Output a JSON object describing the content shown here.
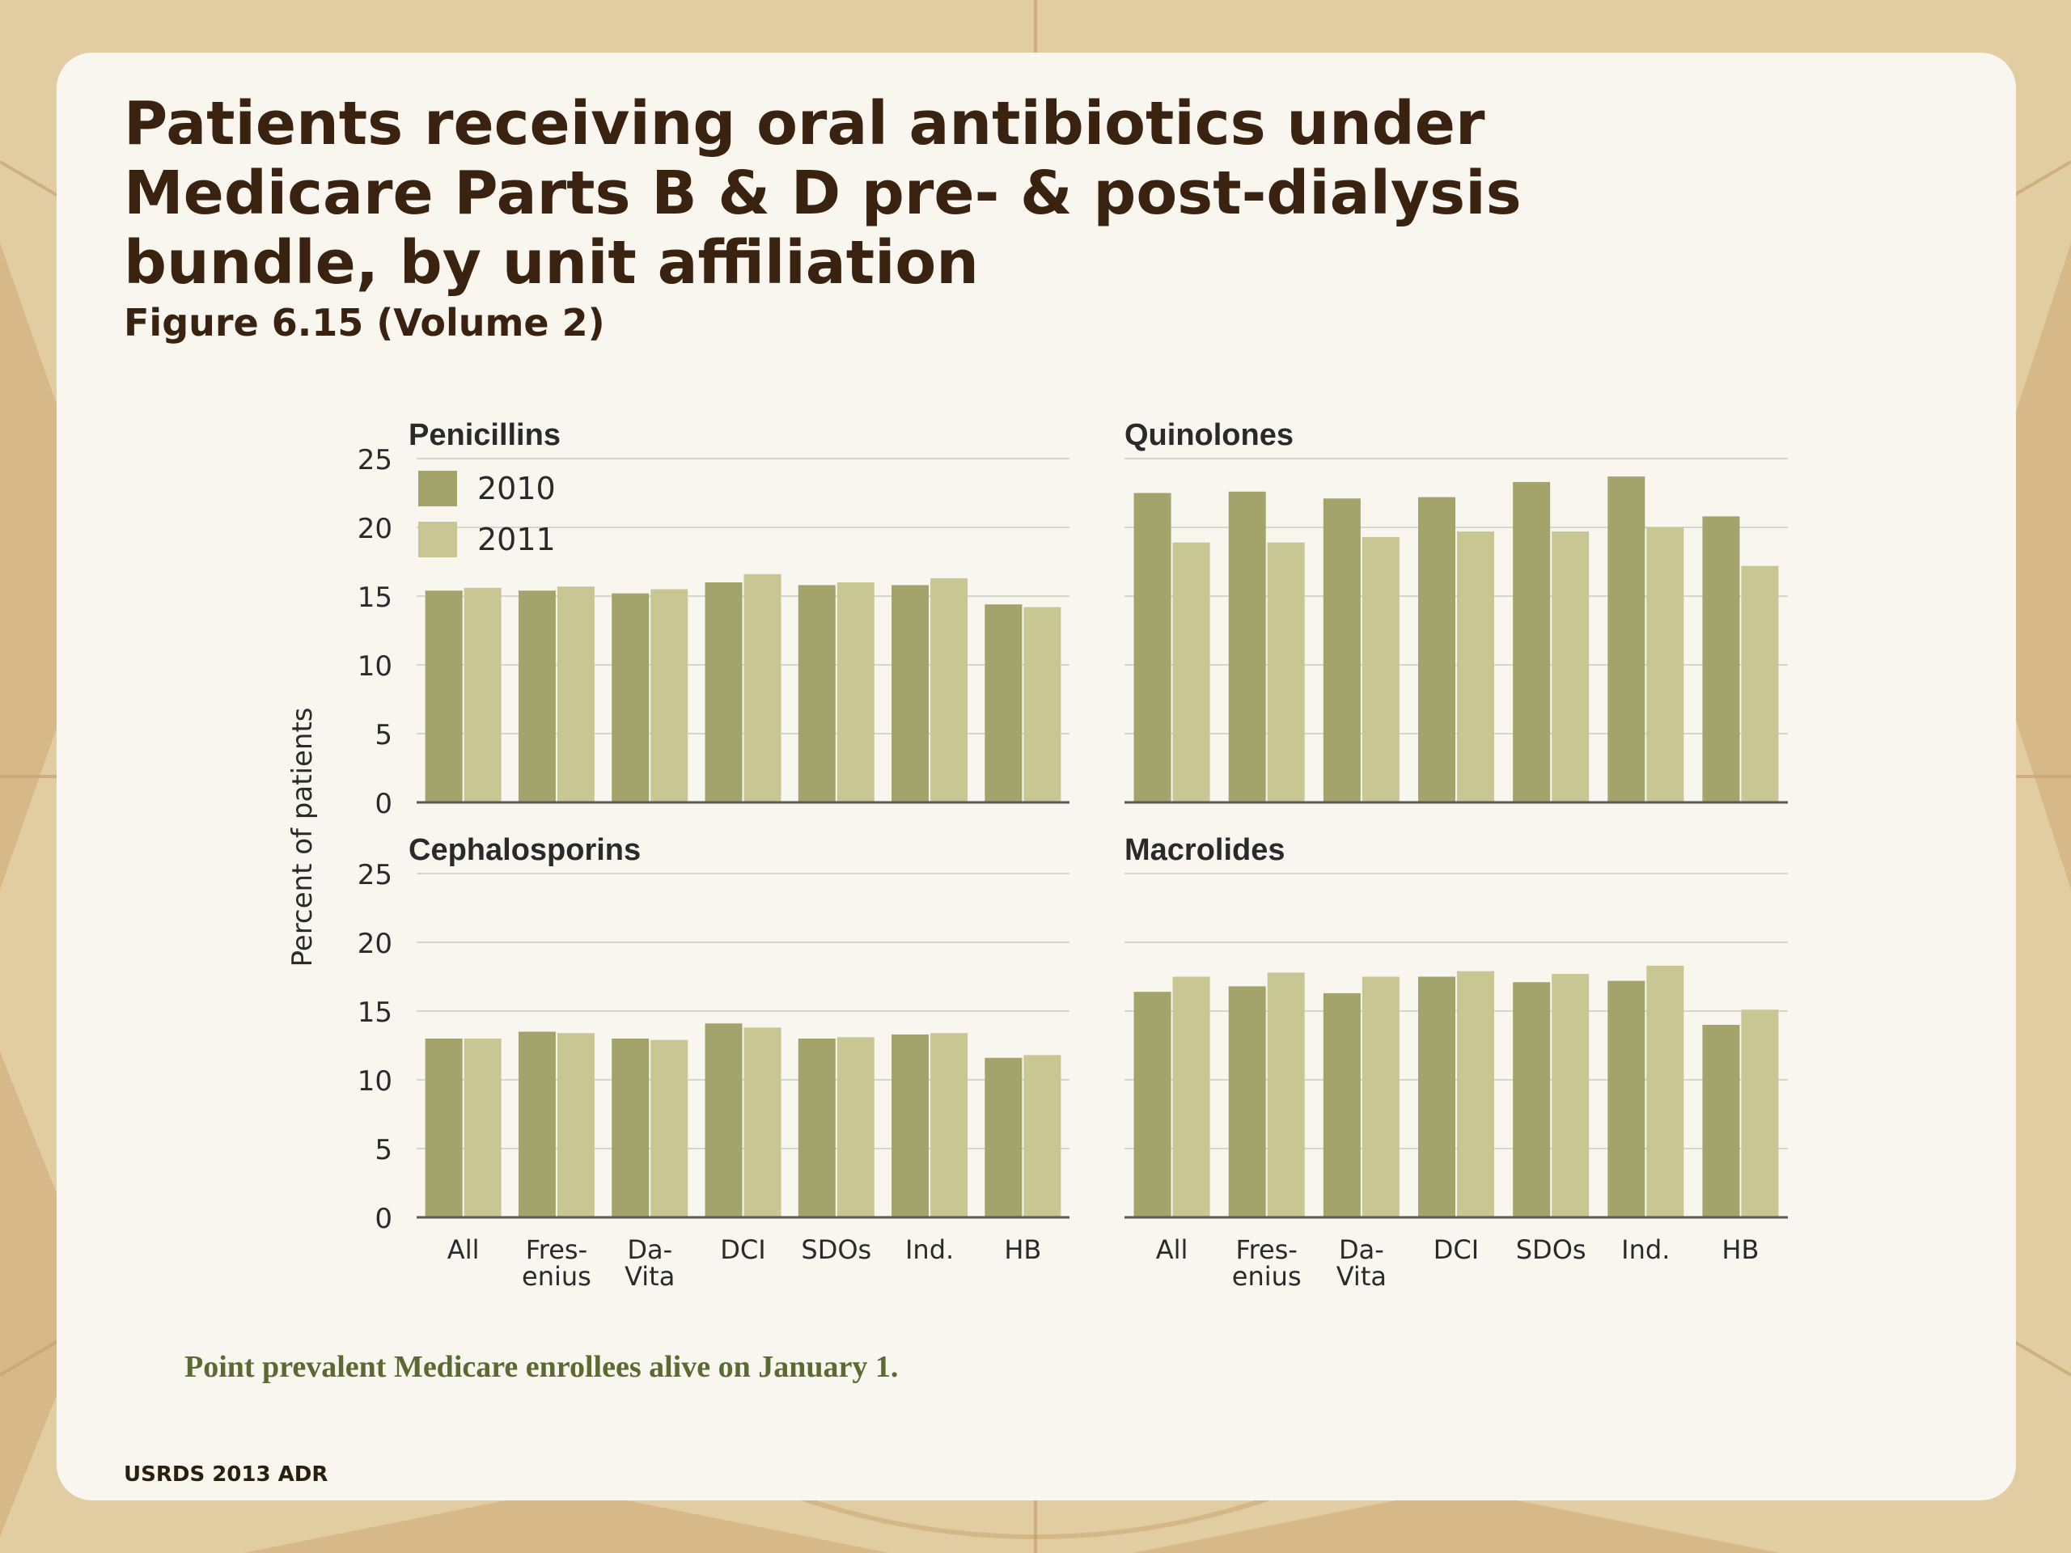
{
  "slide": {
    "title_lines": [
      "Patients receiving oral antibiotics under",
      "Medicare Parts B & D pre- & post-dialysis",
      "bundle, by unit affiliation"
    ],
    "subtitle": "Figure 6.15 (Volume 2)",
    "footnote": "Point prevalent Medicare enrollees alive on January 1.",
    "source": "USRDS 2013 ADR"
  },
  "colors": {
    "series_2010": "#a3a46c",
    "series_2011": "#c8c794",
    "grid": "#d6d6cc",
    "axis": "#5a5a5a"
  },
  "chart_data": {
    "type": "bar",
    "ylabel": "Percent of patients",
    "ylim": [
      0,
      25
    ],
    "yticks": [
      0,
      5,
      10,
      15,
      20,
      25
    ],
    "categories": [
      [
        "All"
      ],
      [
        "Fres-",
        "enius"
      ],
      [
        "Da-",
        "Vita"
      ],
      [
        "DCI"
      ],
      [
        "SDOs"
      ],
      [
        "Ind."
      ],
      [
        "HB"
      ]
    ],
    "legend": [
      "2010",
      "2011"
    ],
    "legend_placement": "top-left",
    "panels": [
      {
        "title": "Penicillins",
        "series": [
          {
            "name": "2010",
            "values": [
              15.4,
              15.4,
              15.2,
              16.0,
              15.8,
              15.8,
              14.4
            ]
          },
          {
            "name": "2011",
            "values": [
              15.6,
              15.7,
              15.5,
              16.6,
              16.0,
              16.3,
              14.2
            ]
          }
        ]
      },
      {
        "title": "Quinolones",
        "series": [
          {
            "name": "2010",
            "values": [
              22.5,
              22.6,
              22.1,
              22.2,
              23.3,
              23.7,
              20.8
            ]
          },
          {
            "name": "2011",
            "values": [
              18.9,
              18.9,
              19.3,
              19.7,
              19.7,
              20.0,
              17.2
            ]
          }
        ]
      },
      {
        "title": "Cephalosporins",
        "series": [
          {
            "name": "2010",
            "values": [
              13.0,
              13.5,
              13.0,
              14.1,
              13.0,
              13.3,
              11.6
            ]
          },
          {
            "name": "2011",
            "values": [
              13.0,
              13.4,
              12.9,
              13.8,
              13.1,
              13.4,
              11.8
            ]
          }
        ]
      },
      {
        "title": "Macrolides",
        "series": [
          {
            "name": "2010",
            "values": [
              16.4,
              16.8,
              16.3,
              17.5,
              17.1,
              17.2,
              14.0
            ]
          },
          {
            "name": "2011",
            "values": [
              17.5,
              17.8,
              17.5,
              17.9,
              17.7,
              18.3,
              15.1
            ]
          }
        ]
      }
    ]
  }
}
